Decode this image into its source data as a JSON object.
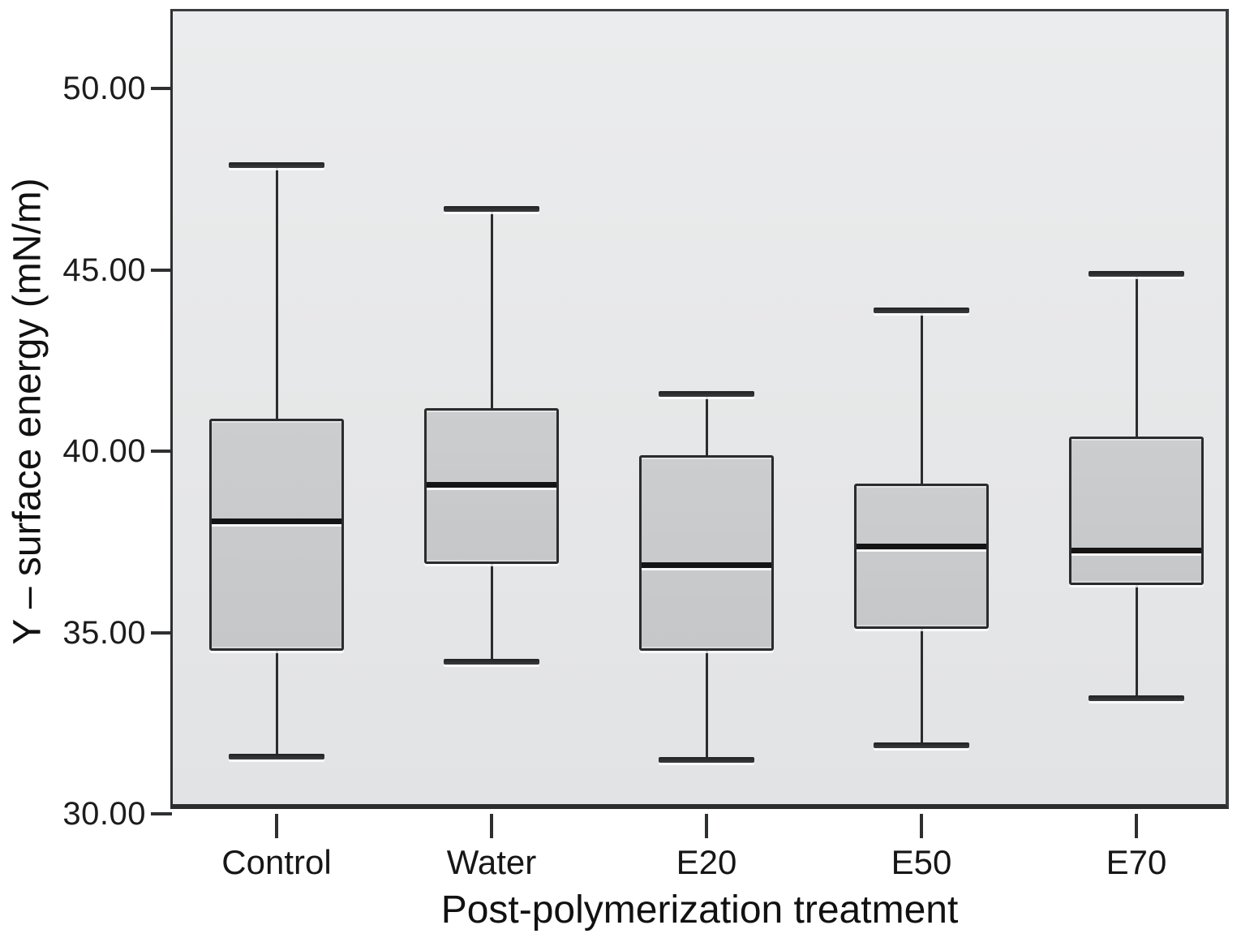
{
  "chart_data": {
    "type": "box",
    "title": "",
    "xlabel": "Post-polymerization treatment",
    "ylabel": "Y – surface energy (mN/m)",
    "categories": [
      "Control",
      "Water",
      "E20",
      "E50",
      "E70"
    ],
    "yticks": [
      30,
      35,
      40,
      45,
      50
    ],
    "ytick_labels": [
      "30.00",
      "35.00",
      "40.00",
      "45.00",
      "50.00"
    ],
    "ylim": [
      30,
      52.2
    ],
    "grid": false,
    "legend": null,
    "series": [
      {
        "name": "Control",
        "min": 31.6,
        "q1": 34.5,
        "median": 38.1,
        "q3": 40.9,
        "max": 47.9
      },
      {
        "name": "Water",
        "min": 34.2,
        "q1": 36.9,
        "median": 39.1,
        "q3": 41.2,
        "max": 46.7
      },
      {
        "name": "E20",
        "min": 31.5,
        "q1": 34.5,
        "median": 36.9,
        "q3": 39.9,
        "max": 41.6
      },
      {
        "name": "E50",
        "min": 31.9,
        "q1": 35.1,
        "median": 37.4,
        "q3": 39.1,
        "max": 43.9
      },
      {
        "name": "E70",
        "min": 33.2,
        "q1": 36.3,
        "median": 37.3,
        "q3": 40.4,
        "max": 44.9
      }
    ],
    "colors": {
      "plot_background": "#e8e9ea",
      "box_fill": "#c7c9cb",
      "line": "#2b2c2e",
      "median": "#141415",
      "text": "#1a1a1a"
    }
  }
}
